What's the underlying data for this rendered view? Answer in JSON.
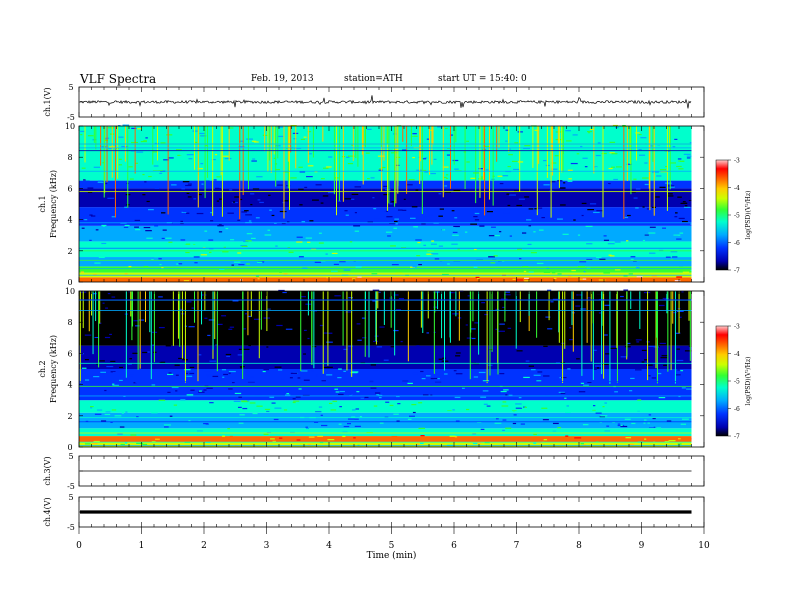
{
  "header": {
    "title": "VLF  Spectra",
    "date": "Feb. 19, 2013",
    "station": "station=ATH",
    "start": "start  UT  =   15:40: 0"
  },
  "chart_data": [
    {
      "type": "line",
      "panel": "ch1-waveform",
      "ylabel": "ch.1(V)",
      "ylim": [
        -5,
        5
      ],
      "yticks": [
        "5",
        "-5"
      ],
      "xlim": [
        0,
        10
      ],
      "baseline": 0,
      "trace_extent_min": 9.8,
      "description_of_values": "noisy waveform around 0 V with sparse spikes"
    },
    {
      "type": "heatmap",
      "panel": "ch1-spectrogram",
      "ylabel": "ch.1\nFrequency  (kHz)",
      "ylabel_parts": [
        "ch.1",
        "Frequency  (kHz)"
      ],
      "ylim": [
        0,
        10
      ],
      "yticks": [
        "0",
        "2",
        "4",
        "6",
        "8",
        "10"
      ],
      "xlim": [
        0,
        9.8
      ],
      "colorbar": {
        "label": "log(PSD)(V²/Hz)",
        "range": [
          -7,
          -3
        ],
        "ticks": [
          "-3",
          "-4",
          "-5",
          "-6",
          "-7"
        ]
      },
      "bands": [
        {
          "f_from": 0,
          "f_to": 0.3,
          "level": -3.8
        },
        {
          "f_from": 0.3,
          "f_to": 0.6,
          "level": -4.6
        },
        {
          "f_from": 0.6,
          "f_to": 1.0,
          "level": -5.2
        },
        {
          "f_from": 1.0,
          "f_to": 1.6,
          "level": -5.8
        },
        {
          "f_from": 1.6,
          "f_to": 2.6,
          "level": -5.3
        },
        {
          "f_from": 2.6,
          "f_to": 3.6,
          "level": -5.9
        },
        {
          "f_from": 3.6,
          "f_to": 4.8,
          "level": -6.3
        },
        {
          "f_from": 4.8,
          "f_to": 6.0,
          "level": -6.7
        },
        {
          "f_from": 6.0,
          "f_to": 6.5,
          "level": -6.2
        },
        {
          "f_from": 6.5,
          "f_to": 10,
          "level": -5.4
        }
      ]
    },
    {
      "type": "heatmap",
      "panel": "ch2-spectrogram",
      "ylabel": "ch.2\nFrequency  (kHz)",
      "ylabel_parts": [
        "ch.2",
        "Frequency  (kHz)"
      ],
      "ylim": [
        0,
        10
      ],
      "yticks": [
        "0",
        "2",
        "4",
        "6",
        "8",
        "10"
      ],
      "xlim": [
        0,
        9.8
      ],
      "colorbar": {
        "label": "log(PSD)(V²/Hz)",
        "range": [
          -7,
          -3
        ],
        "ticks": [
          "-3",
          "-4",
          "-5",
          "-6",
          "-7"
        ]
      },
      "bands": [
        {
          "f_from": 0,
          "f_to": 0.3,
          "level": -4.8
        },
        {
          "f_from": 0.3,
          "f_to": 0.7,
          "level": -4.0
        },
        {
          "f_from": 0.7,
          "f_to": 1.2,
          "level": -5.4
        },
        {
          "f_from": 1.2,
          "f_to": 2.2,
          "level": -5.9
        },
        {
          "f_from": 2.2,
          "f_to": 3.0,
          "level": -5.5
        },
        {
          "f_from": 3.0,
          "f_to": 5.0,
          "level": -6.1
        },
        {
          "f_from": 5.0,
          "f_to": 6.5,
          "level": -6.7
        },
        {
          "f_from": 6.5,
          "f_to": 10,
          "level": -6.9
        }
      ]
    },
    {
      "type": "line",
      "panel": "ch3-waveform",
      "ylabel": "ch.3(V)",
      "ylim": [
        -5,
        5
      ],
      "yticks": [
        "5",
        "-5"
      ],
      "xlim": [
        0,
        10
      ],
      "baseline": 0,
      "trace_extent_min": 9.8,
      "description_of_values": "flat trace near 0 V"
    },
    {
      "type": "line",
      "panel": "ch4-waveform",
      "ylabel": "ch.4(V)",
      "ylim": [
        -5,
        5
      ],
      "yticks": [
        "5",
        "-5"
      ],
      "xlim": [
        0,
        10
      ],
      "baseline": 0,
      "trace_extent_min": 9.8,
      "description_of_values": "thick flat trace near 0 V"
    }
  ],
  "xaxis": {
    "label": "Time  (min)",
    "ticks": [
      "0",
      "1",
      "2",
      "3",
      "4",
      "5",
      "6",
      "7",
      "8",
      "9",
      "10"
    ],
    "range": [
      0,
      10
    ]
  },
  "colors": {
    "colormap": [
      "#000000",
      "#0000b0",
      "#0033ff",
      "#00aaff",
      "#00ffcc",
      "#33ff33",
      "#ccff00",
      "#ffcc00",
      "#ff6600",
      "#ff0000",
      "#ffcccc"
    ],
    "trace": "#000000"
  }
}
